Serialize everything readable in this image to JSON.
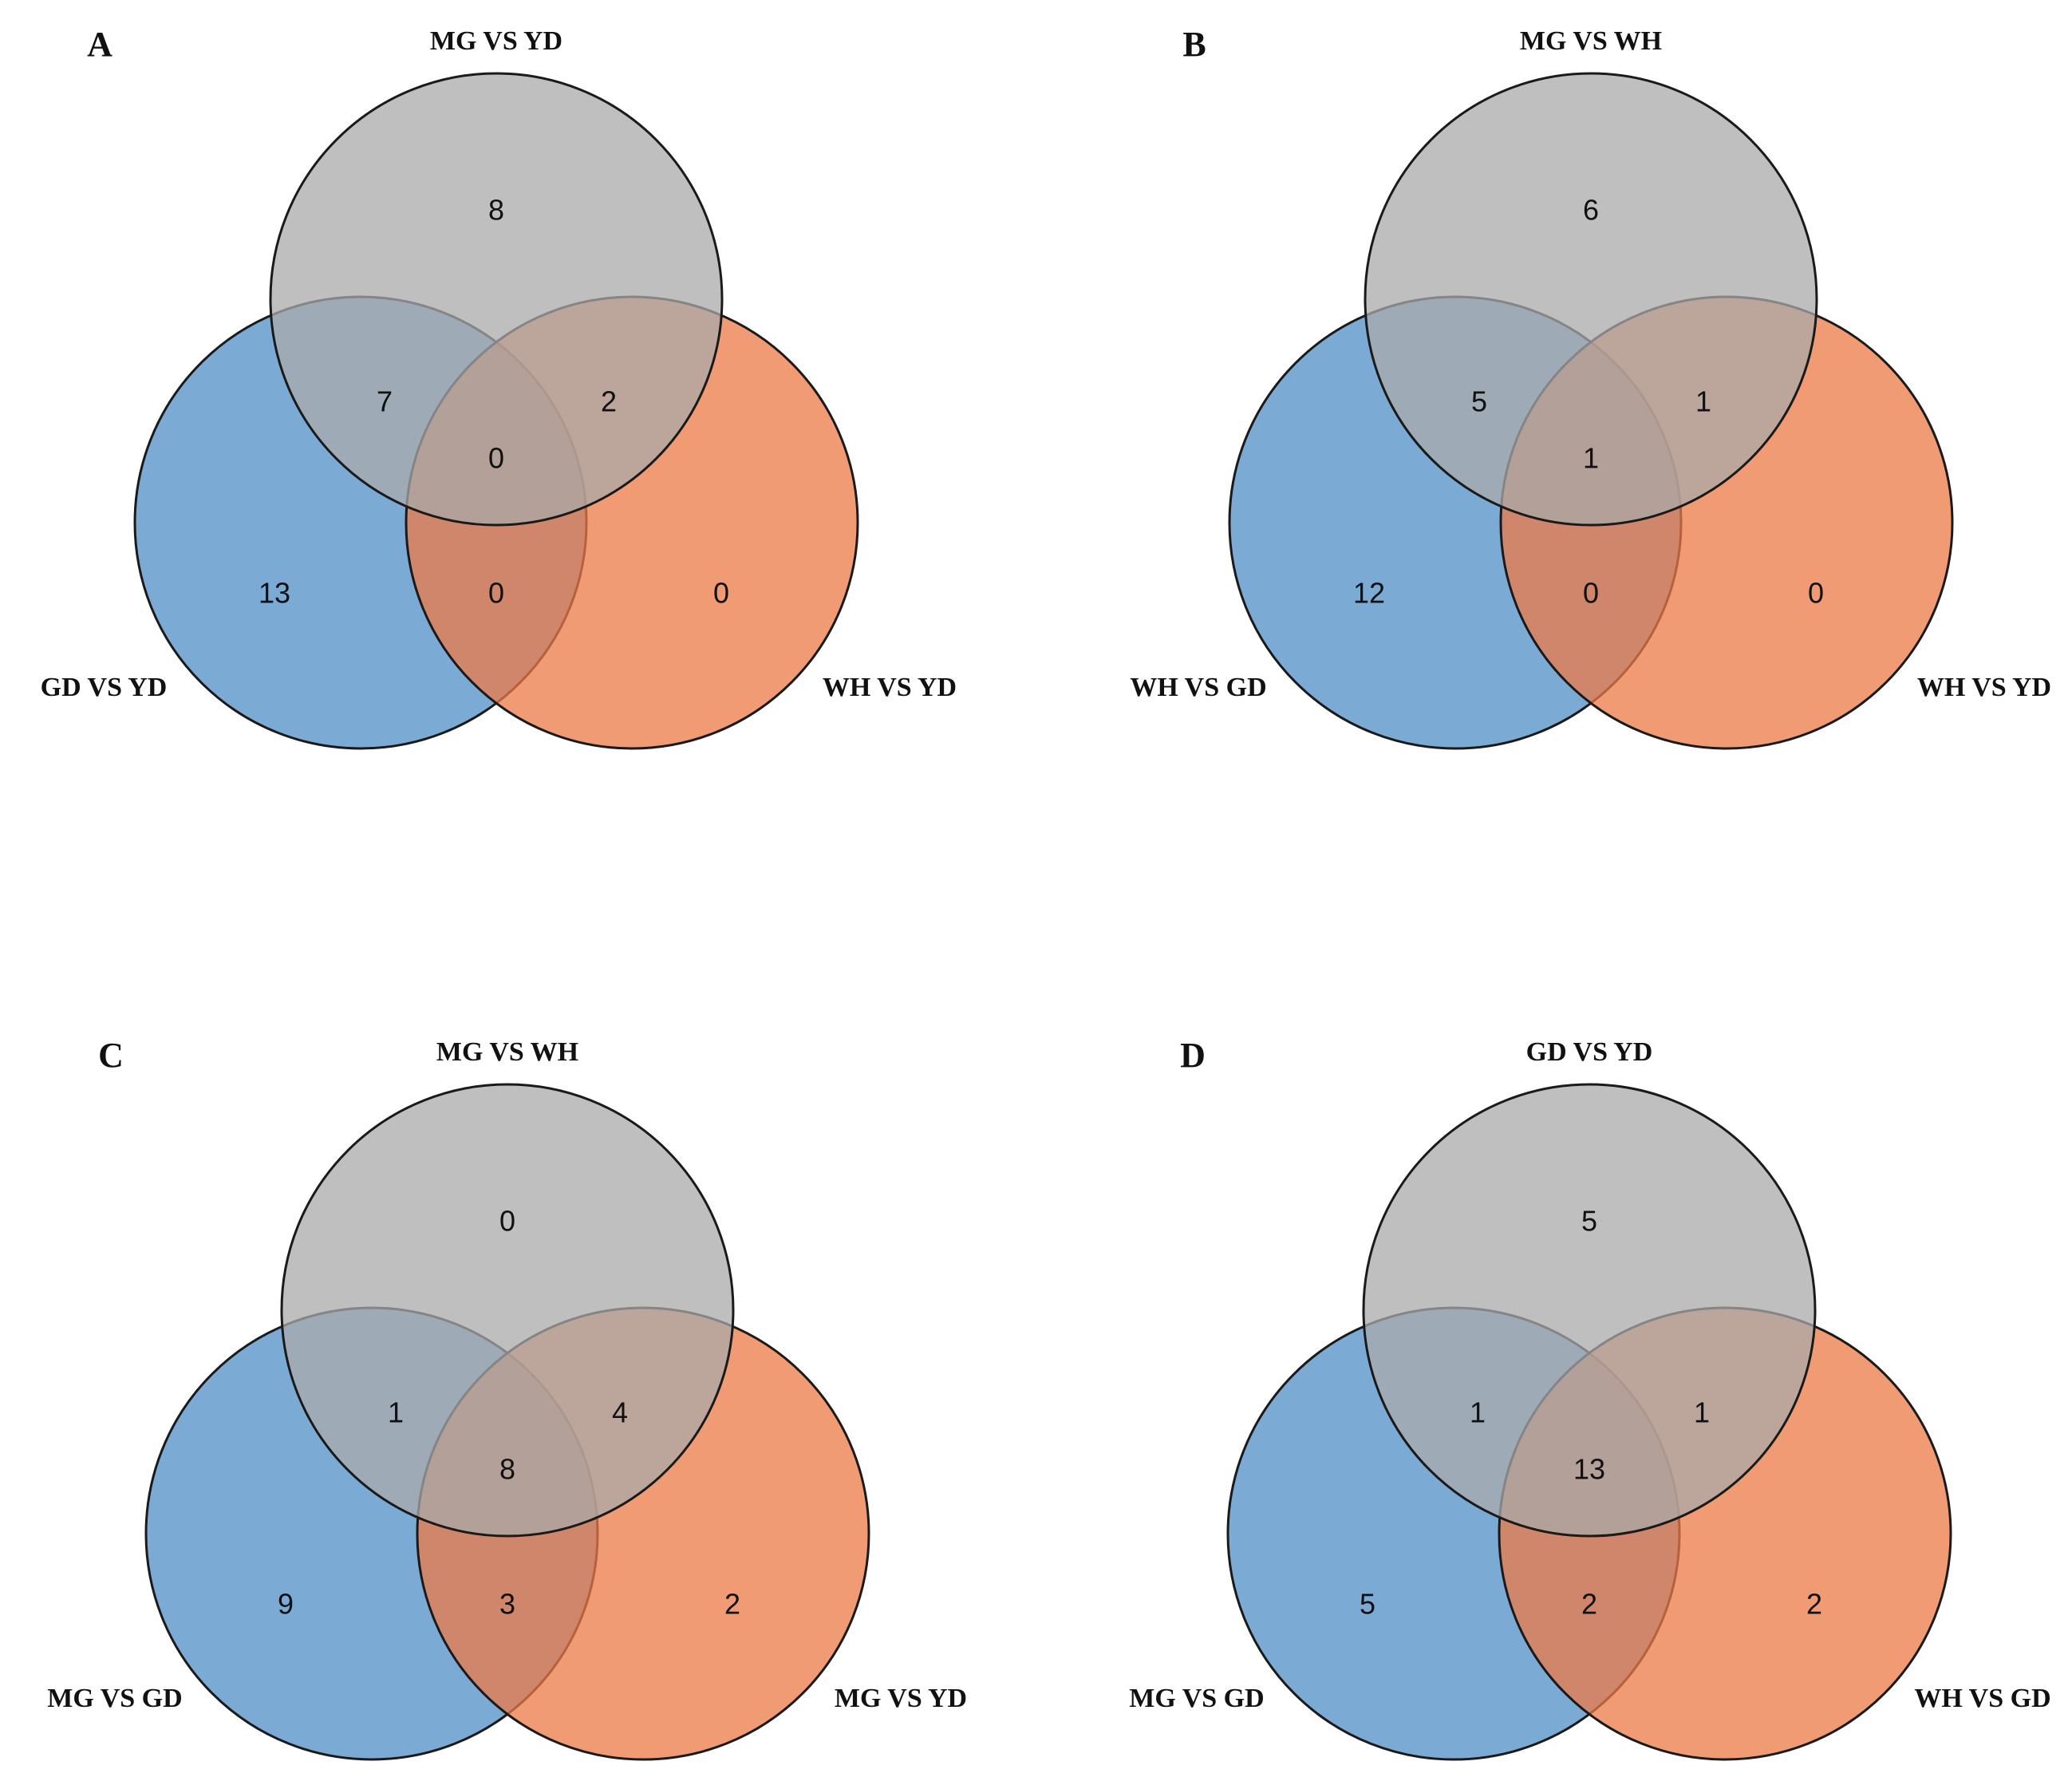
{
  "colors": {
    "top_set": "#a9a9a9",
    "left_set": "#4f8fc7",
    "right_set": "#ec7a46"
  },
  "panels": [
    {
      "letter": "A",
      "labels": {
        "top": "MG VS YD",
        "left": "GD VS YD",
        "right": "WH VS YD"
      },
      "counts": {
        "top_only": "8",
        "left_only": "13",
        "right_only": "0",
        "top_left": "7",
        "top_right": "2",
        "left_right": "0",
        "all": "0"
      }
    },
    {
      "letter": "B",
      "labels": {
        "top": "MG VS WH",
        "left": "WH VS GD",
        "right": "WH VS YD"
      },
      "counts": {
        "top_only": "6",
        "left_only": "12",
        "right_only": "0",
        "top_left": "5",
        "top_right": "1",
        "left_right": "0",
        "all": "1"
      }
    },
    {
      "letter": "C",
      "labels": {
        "top": "MG VS WH",
        "left": "MG VS GD",
        "right": "MG VS YD"
      },
      "counts": {
        "top_only": "0",
        "left_only": "9",
        "right_only": "2",
        "top_left": "1",
        "top_right": "4",
        "left_right": "3",
        "all": "8"
      }
    },
    {
      "letter": "D",
      "labels": {
        "top": "GD VS YD",
        "left": "MG VS GD",
        "right": "WH VS GD"
      },
      "counts": {
        "top_only": "5",
        "left_only": "5",
        "right_only": "2",
        "top_left": "1",
        "top_right": "1",
        "left_right": "2",
        "all": "13"
      }
    }
  ]
}
